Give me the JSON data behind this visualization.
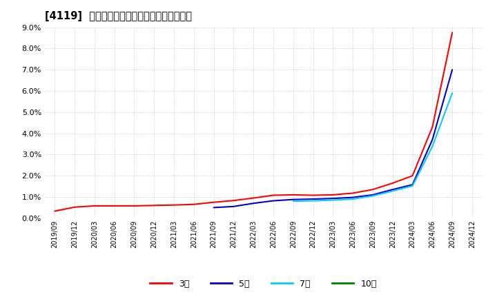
{
  "title": "[4119]  当期純利益マージンの標準偏差の推移",
  "background_color": "#ffffff",
  "plot_background": "#ffffff",
  "grid_color": "#c8c8c8",
  "ylim": [
    0.0,
    0.09
  ],
  "yticks": [
    0.0,
    0.01,
    0.02,
    0.03,
    0.04,
    0.05,
    0.06,
    0.07,
    0.08,
    0.09
  ],
  "series": {
    "3年": {
      "color": "#ff0000",
      "linewidth": 1.5,
      "data": [
        [
          "2019/09",
          0.0033
        ],
        [
          "2019/12",
          0.0052
        ],
        [
          "2020/03",
          0.0058
        ],
        [
          "2020/06",
          0.0058
        ],
        [
          "2020/09",
          0.0058
        ],
        [
          "2020/12",
          0.006
        ],
        [
          "2021/03",
          0.0062
        ],
        [
          "2021/06",
          0.0065
        ],
        [
          "2021/09",
          0.0075
        ],
        [
          "2021/12",
          0.0083
        ],
        [
          "2022/03",
          0.0095
        ],
        [
          "2022/06",
          0.0108
        ],
        [
          "2022/09",
          0.011
        ],
        [
          "2022/12",
          0.0108
        ],
        [
          "2023/03",
          0.011
        ],
        [
          "2023/06",
          0.0118
        ],
        [
          "2023/09",
          0.0135
        ],
        [
          "2023/12",
          0.0165
        ],
        [
          "2024/03",
          0.02
        ],
        [
          "2024/06",
          0.043
        ],
        [
          "2024/09",
          0.0875
        ],
        [
          "2024/12",
          null
        ]
      ]
    },
    "5年": {
      "color": "#0000cc",
      "linewidth": 1.5,
      "data": [
        [
          "2019/09",
          null
        ],
        [
          "2019/12",
          null
        ],
        [
          "2020/03",
          null
        ],
        [
          "2020/06",
          null
        ],
        [
          "2020/09",
          null
        ],
        [
          "2020/12",
          null
        ],
        [
          "2021/03",
          null
        ],
        [
          "2021/06",
          null
        ],
        [
          "2021/09",
          0.005
        ],
        [
          "2021/12",
          0.0055
        ],
        [
          "2022/03",
          0.007
        ],
        [
          "2022/06",
          0.0082
        ],
        [
          "2022/09",
          0.0088
        ],
        [
          "2022/12",
          0.009
        ],
        [
          "2023/03",
          0.0093
        ],
        [
          "2023/06",
          0.0098
        ],
        [
          "2023/09",
          0.011
        ],
        [
          "2023/12",
          0.0135
        ],
        [
          "2024/03",
          0.0158
        ],
        [
          "2024/06",
          0.037
        ],
        [
          "2024/09",
          0.07
        ],
        [
          "2024/12",
          null
        ]
      ]
    },
    "7年": {
      "color": "#00ccff",
      "linewidth": 1.5,
      "data": [
        [
          "2019/09",
          null
        ],
        [
          "2019/12",
          null
        ],
        [
          "2020/03",
          null
        ],
        [
          "2020/06",
          null
        ],
        [
          "2020/09",
          null
        ],
        [
          "2020/12",
          null
        ],
        [
          "2021/03",
          null
        ],
        [
          "2021/06",
          null
        ],
        [
          "2021/09",
          null
        ],
        [
          "2021/12",
          null
        ],
        [
          "2022/03",
          null
        ],
        [
          "2022/06",
          null
        ],
        [
          "2022/09",
          0.008
        ],
        [
          "2022/12",
          0.0082
        ],
        [
          "2023/03",
          0.0085
        ],
        [
          "2023/06",
          0.009
        ],
        [
          "2023/09",
          0.0105
        ],
        [
          "2023/12",
          0.0128
        ],
        [
          "2024/03",
          0.0152
        ],
        [
          "2024/06",
          0.0338
        ],
        [
          "2024/09",
          0.059
        ],
        [
          "2024/12",
          null
        ]
      ]
    },
    "10年": {
      "color": "#008000",
      "linewidth": 1.5,
      "data": [
        [
          "2019/09",
          null
        ],
        [
          "2019/12",
          null
        ],
        [
          "2020/03",
          null
        ],
        [
          "2020/06",
          null
        ],
        [
          "2020/09",
          null
        ],
        [
          "2020/12",
          null
        ],
        [
          "2021/03",
          null
        ],
        [
          "2021/06",
          null
        ],
        [
          "2021/09",
          null
        ],
        [
          "2021/12",
          null
        ],
        [
          "2022/03",
          null
        ],
        [
          "2022/06",
          null
        ],
        [
          "2022/09",
          null
        ],
        [
          "2022/12",
          null
        ],
        [
          "2023/03",
          null
        ],
        [
          "2023/06",
          null
        ],
        [
          "2023/09",
          null
        ],
        [
          "2023/12",
          null
        ],
        [
          "2024/03",
          null
        ],
        [
          "2024/06",
          null
        ],
        [
          "2024/09",
          null
        ],
        [
          "2024/12",
          null
        ]
      ]
    }
  },
  "xtick_labels": [
    "2019/09",
    "2019/12",
    "2020/03",
    "2020/06",
    "2020/09",
    "2020/12",
    "2021/03",
    "2021/06",
    "2021/09",
    "2021/12",
    "2022/03",
    "2022/06",
    "2022/09",
    "2022/12",
    "2023/03",
    "2023/06",
    "2023/09",
    "2023/12",
    "2024/03",
    "2024/06",
    "2024/09",
    "2024/12"
  ],
  "legend_entries": [
    "3年",
    "5年",
    "7年",
    "10年"
  ],
  "legend_colors": [
    "#ff0000",
    "#0000cc",
    "#00ccff",
    "#008000"
  ],
  "legend_labels": [
    "3年",
    "5年",
    "7年",
    "10年"
  ]
}
